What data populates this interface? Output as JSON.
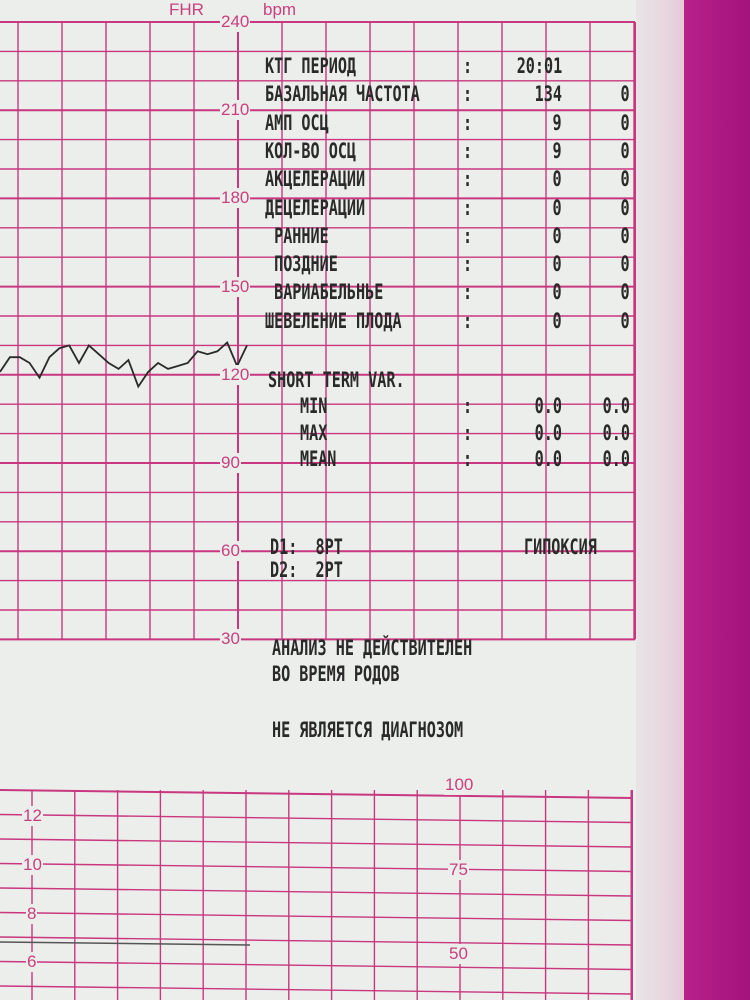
{
  "colors": {
    "grid": "#c8377f",
    "ink": "#2a2a2a",
    "paper": "#eceeeb",
    "binder": "#a8177f"
  },
  "fhr_axis": {
    "title": "FHR",
    "unit": "bpm",
    "ticks": [
      "240",
      "210",
      "180",
      "150",
      "120",
      "90",
      "60",
      "30"
    ]
  },
  "lower_axis": {
    "left_ticks": [
      "12",
      "10",
      "8",
      "6"
    ],
    "right_ticks": [
      "100",
      "75",
      "50"
    ]
  },
  "fhr_trace_bpm": [
    121,
    126,
    126,
    124,
    119,
    126,
    129,
    130,
    124,
    130,
    127,
    124,
    122,
    125,
    116,
    121,
    124,
    122,
    123,
    124,
    128,
    127,
    128,
    131,
    123,
    130
  ],
  "report": {
    "rows": [
      {
        "label": "КТГ ПЕРИОД",
        "sep": ":",
        "v1": "20:01",
        "v2": ""
      },
      {
        "label": "БАЗАЛЬНАЯ ЧАСТОТА",
        "sep": ":",
        "v1": "134",
        "v2": "0"
      },
      {
        "label": "АМП ОСЦ",
        "sep": ":",
        "v1": "9",
        "v2": "0"
      },
      {
        "label": "КОЛ-ВО ОСЦ",
        "sep": ":",
        "v1": "9",
        "v2": "0"
      },
      {
        "label": "АКЦЕЛЕРАЦИИ",
        "sep": ":",
        "v1": "0",
        "v2": "0"
      },
      {
        "label": "ДЕЦЕЛЕРАЦИИ",
        "sep": ":",
        "v1": "0",
        "v2": "0"
      },
      {
        "label": " РАННИЕ",
        "sep": ":",
        "v1": "0",
        "v2": "0"
      },
      {
        "label": " ПОЗДНИЕ",
        "sep": ":",
        "v1": "0",
        "v2": "0"
      },
      {
        "label": " ВАРИАБЕЛЬНЬЕ",
        "sep": ":",
        "v1": "0",
        "v2": "0"
      },
      {
        "label": "ШЕВЕЛЕНИЕ ПЛОДА",
        "sep": ":",
        "v1": "0",
        "v2": "0"
      }
    ],
    "stv_title": "SHORT TERM VAR.",
    "stv_rows": [
      {
        "label": "MIN",
        "sep": ":",
        "v1": "0.0",
        "v2": "0.0"
      },
      {
        "label": "MAX",
        "sep": ":",
        "v1": "0.0",
        "v2": "0.0"
      },
      {
        "label": "MEAN",
        "sep": ":",
        "v1": "0.0",
        "v2": "0.0"
      }
    ],
    "d1": "D1:  8PT",
    "d2": "D2:  2PT",
    "verdict": "ГИПОКСИЯ",
    "note1": "АНАЛИЗ НЕ ДЕЙСТВИТЕЛЕН",
    "note2": "ВО ВРЕМЯ РОДОВ",
    "note3": "НЕ ЯВЛЯЕТСЯ ДИАГНОЗОМ"
  }
}
